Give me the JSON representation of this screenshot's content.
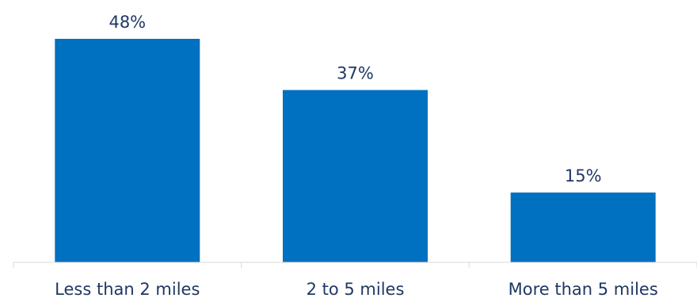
{
  "chart_data": {
    "type": "bar",
    "title": "",
    "xlabel": "",
    "ylabel": "",
    "categories": [
      "Less than 2 miles",
      "2 to 5 miles",
      "More than 5 miles"
    ],
    "values": [
      48,
      37,
      15
    ],
    "data_labels": [
      "48%",
      "37%",
      "15%"
    ],
    "ylim": [
      0,
      48
    ],
    "grid": false,
    "legend": "none",
    "bar_color": "#0070c0",
    "axis_color": "#d9d9d9",
    "text_color": "#1f3864"
  }
}
